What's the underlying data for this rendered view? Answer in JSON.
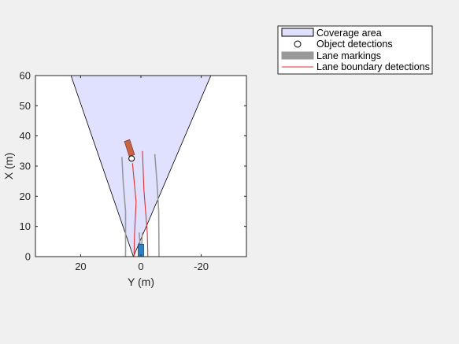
{
  "chart_data": {
    "type": "bird's-eye plot",
    "title": "",
    "xlabel": "Y (m)",
    "ylabel": "X (m)",
    "xlim": [
      35,
      -35
    ],
    "ylim": [
      0,
      60
    ],
    "x_ticks": [
      20,
      0,
      -20
    ],
    "x_tick_labels": [
      "20",
      "0",
      "-20"
    ],
    "y_ticks": [
      0,
      10,
      20,
      30,
      40,
      50,
      60
    ],
    "y_tick_labels": [
      "0",
      "10",
      "20",
      "30",
      "40",
      "50",
      "60"
    ],
    "grid": false,
    "legend": {
      "placement": "outside-top-right",
      "entries": [
        {
          "label": "Coverage area",
          "kind": "patch",
          "fill": "#e0e0ff",
          "stroke": "#000000"
        },
        {
          "label": "Object detections",
          "kind": "circle-marker",
          "fill": "#ffffff",
          "stroke": "#000000"
        },
        {
          "label": "Lane markings",
          "kind": "patch",
          "fill": "#999999",
          "stroke": "#999999"
        },
        {
          "label": "Lane boundary detections",
          "kind": "line",
          "stroke": "#e03030"
        }
      ]
    },
    "coverage_area": {
      "origin": [
        2.5,
        0
      ],
      "range_m": 65,
      "y_at_top": [
        23.2,
        -23.2
      ],
      "fill": "#e0e0ff",
      "stroke": "#000000"
    },
    "lane_markings": [
      {
        "name": "left-outer",
        "points": [
          [
            5.1,
            0
          ],
          [
            5.1,
            15
          ],
          [
            5.9,
            25
          ],
          [
            6.3,
            33
          ]
        ]
      },
      {
        "name": "left-inner",
        "points": [
          [
            0.3,
            0
          ],
          [
            0.2,
            3
          ],
          [
            0.6,
            8
          ]
        ]
      },
      {
        "name": "right-inner",
        "points": [
          [
            -0.3,
            0
          ],
          [
            -0.2,
            3
          ],
          [
            -0.5,
            8
          ]
        ]
      },
      {
        "name": "right-outer",
        "points": [
          [
            -6.0,
            0
          ],
          [
            -5.9,
            15
          ],
          [
            -5.3,
            25
          ],
          [
            -4.6,
            34
          ]
        ]
      }
    ],
    "lane_boundary_detections": [
      {
        "name": "left",
        "points": [
          [
            2.3,
            0
          ],
          [
            2.1,
            8
          ],
          [
            1.6,
            18
          ],
          [
            2.8,
            31
          ]
        ]
      },
      {
        "name": "right",
        "points": [
          [
            -2.3,
            0
          ],
          [
            -2.1,
            8
          ],
          [
            -1.0,
            22
          ],
          [
            -0.5,
            35
          ]
        ]
      }
    ],
    "object_detections": [
      {
        "y": 3.1,
        "x": 32.5
      }
    ],
    "tracked_vehicle": {
      "y": 3.8,
      "x": 36,
      "color": "#c86446"
    },
    "ego_vehicle": {
      "y": 0,
      "x": 2,
      "color": "#2f7fc1"
    },
    "colors": {
      "axes_background": "#ffffff",
      "figure_background": "#f0f0f0",
      "lane_marking": "#999999",
      "lane_detection": "#e03030"
    }
  }
}
